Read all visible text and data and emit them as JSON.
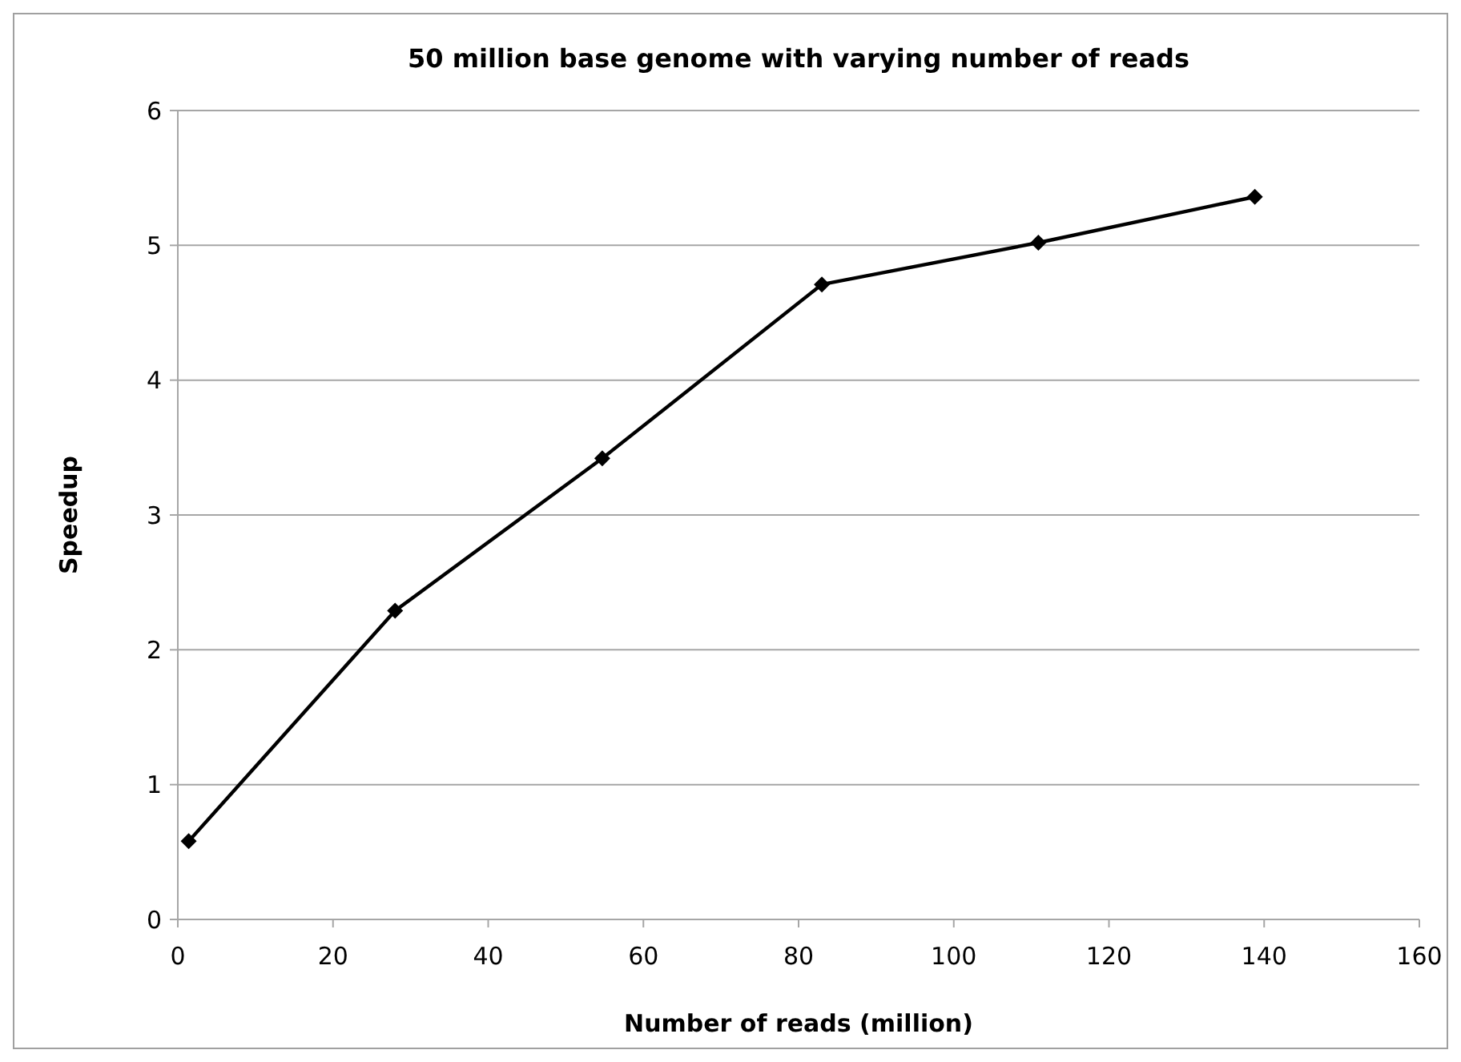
{
  "chart_data": {
    "type": "line",
    "title": "50 million base genome with varying number of reads",
    "xlabel": "Number of reads (million)",
    "ylabel": "Speedup",
    "x": [
      1.4,
      28,
      54.7,
      83,
      110.9,
      138.8
    ],
    "series": [
      {
        "color": "#000000",
        "values": [
          0.58,
          2.29,
          3.42,
          4.71,
          5.02,
          5.36
        ]
      }
    ],
    "xlim": [
      0,
      160
    ],
    "xticks": [
      0,
      20,
      40,
      60,
      80,
      100,
      120,
      140,
      160
    ],
    "ylim": [
      0,
      6
    ],
    "yticks": [
      0,
      1,
      2,
      3,
      4,
      5,
      6
    ],
    "grid": "y",
    "marker": "diamond",
    "line_style": "solid"
  }
}
